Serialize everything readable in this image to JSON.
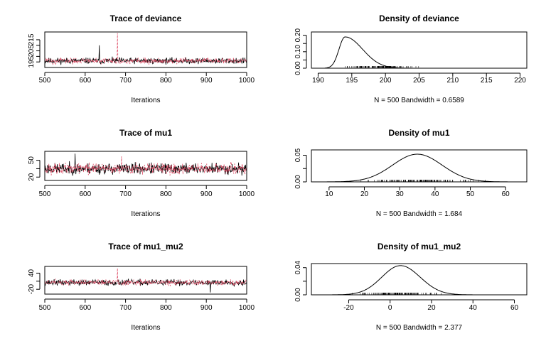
{
  "colors": {
    "chain1": "#000000",
    "chain2": "#DF536B"
  },
  "chart_data": [
    {
      "type": "line",
      "title": "Trace of deviance",
      "xlabel": "Iterations",
      "xlim": [
        500,
        1000
      ],
      "ylim": [
        190,
        222
      ],
      "xticks": [
        "500",
        "600",
        "700",
        "800",
        "900",
        "1000"
      ],
      "yticks": [
        "195",
        "205",
        "215"
      ],
      "series": [
        {
          "color": "#000000",
          "mean": 196.0,
          "spread": 2.2,
          "spike_at": 635,
          "spike_value": 210
        },
        {
          "color": "#DF536B",
          "mean": 196.0,
          "spread": 2.2,
          "spike_at": 680,
          "spike_value": 221
        }
      ],
      "seed": 11
    },
    {
      "type": "area",
      "title": "Density of deviance",
      "xlabel": "N = 500   Bandwidth = 0.6589",
      "xlim": [
        189,
        221
      ],
      "ylim": [
        0,
        0.22
      ],
      "xticks": [
        "190",
        "195",
        "200",
        "205",
        "210",
        "215",
        "220"
      ],
      "yticks": [
        "0.00",
        "0.10",
        "0.20"
      ],
      "density": {
        "peak_x": 194,
        "peak_y": 0.19,
        "left_sd": 0.9,
        "right_sd": 2.6,
        "tail_end": 220
      },
      "rug_range": [
        192,
        206
      ]
    },
    {
      "type": "line",
      "title": "Trace of mu1",
      "xlabel": "Iterations",
      "xlim": [
        500,
        1000
      ],
      "ylim": [
        14,
        66
      ],
      "xticks": [
        "500",
        "600",
        "700",
        "800",
        "900",
        "1000"
      ],
      "yticks": [
        "20",
        "50"
      ],
      "series": [
        {
          "color": "#000000",
          "mean": 35.0,
          "spread": 8.0,
          "spike_at": 575,
          "spike_value": 62
        },
        {
          "color": "#DF536B",
          "mean": 35.0,
          "spread": 8.0,
          "spike_at": 690,
          "spike_value": 57
        }
      ],
      "seed": 23
    },
    {
      "type": "area",
      "title": "Density of mu1",
      "xlabel": "N = 500   Bandwidth = 1.684",
      "xlim": [
        5,
        66
      ],
      "ylim": [
        0,
        0.06
      ],
      "xticks": [
        "10",
        "20",
        "30",
        "40",
        "50",
        "60"
      ],
      "yticks": [
        "0.00",
        "0.05"
      ],
      "density": {
        "peak_x": 35,
        "peak_y": 0.052,
        "left_sd": 7.0,
        "right_sd": 7.0,
        "tail_start": 8,
        "tail_end": 65
      },
      "rug_range": [
        14,
        58
      ]
    },
    {
      "type": "line",
      "title": "Trace of mu1_mu2",
      "xlabel": "Iterations",
      "xlim": [
        500,
        1000
      ],
      "ylim": [
        -38,
        65
      ],
      "xticks": [
        "500",
        "600",
        "700",
        "800",
        "900",
        "1000"
      ],
      "yticks": [
        "-20",
        "40"
      ],
      "series": [
        {
          "color": "#000000",
          "mean": 5.0,
          "spread": 9.0,
          "spike_at": 910,
          "spike_value": -32
        },
        {
          "color": "#DF536B",
          "mean": 5.0,
          "spread": 9.0,
          "spike_at": 680,
          "spike_value": 58
        }
      ],
      "seed": 37
    },
    {
      "type": "area",
      "title": "Density of mu1_mu2",
      "xlabel": "N = 500   Bandwidth = 2.377",
      "xlim": [
        -38,
        66
      ],
      "ylim": [
        0,
        0.046
      ],
      "xticks": [
        "-20",
        "0",
        "20",
        "40",
        "60"
      ],
      "yticks": [
        "0.00",
        "0.04"
      ],
      "density": {
        "peak_x": 5,
        "peak_y": 0.043,
        "left_sd": 9.0,
        "right_sd": 9.5,
        "tail_start": -35,
        "tail_end": 64
      },
      "rug_range": [
        -22,
        30
      ]
    }
  ]
}
